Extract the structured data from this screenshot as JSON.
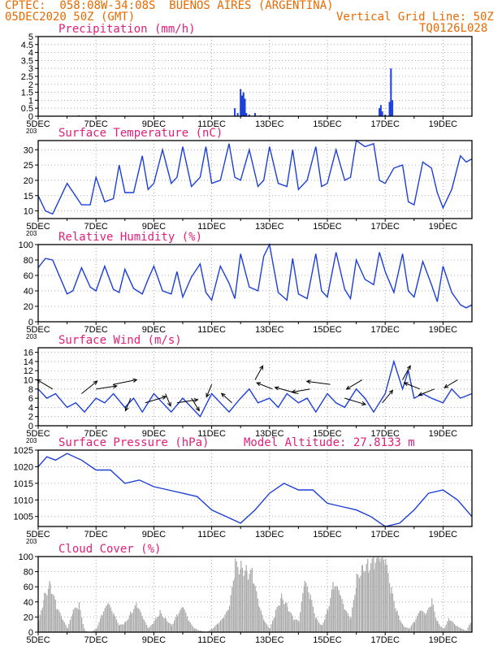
{
  "header": {
    "line1": "CPTEC:  058:08W-34:08S  BUENOS AIRES (ARGENTINA)",
    "line2": "05DEC2020 50Z (GMT)",
    "grid_note": "Vertical Grid Line: 50Z",
    "code": "TQ0126L028"
  },
  "colors": {
    "header": "#e86a00",
    "title": "#e0207a",
    "series": "#1c3fd8",
    "cloud": "#a8a8a8"
  },
  "x_axis": {
    "labels": [
      "5DEC",
      "7DEC",
      "9DEC",
      "11DEC",
      "13DEC",
      "15DEC",
      "17DEC",
      "19DEC"
    ],
    "stub": "203"
  },
  "chart_data": [
    {
      "id": "precip",
      "type": "bar",
      "title": "Precipitation (mm/h)",
      "ylim": [
        0,
        5
      ],
      "yticks": [
        0,
        0.5,
        1,
        1.5,
        2,
        2.5,
        3,
        3.5,
        4,
        4.5,
        5
      ],
      "x": [
        6.4,
        7.1,
        10.6,
        11.8,
        11.9,
        12.0,
        12.05,
        12.1,
        12.15,
        12.2,
        12.3,
        12.5,
        12.7,
        16.8,
        16.85,
        16.9,
        17.0,
        17.15,
        17.2,
        17.25
      ],
      "values": [
        0.05,
        0.05,
        0.05,
        0.5,
        0.2,
        1.7,
        1.3,
        1.5,
        1.1,
        0.2,
        0.1,
        0.2,
        0.05,
        0.5,
        0.7,
        0.3,
        0.1,
        0.9,
        3.0,
        1.0
      ]
    },
    {
      "id": "temp",
      "type": "line",
      "title": "Surface Temperature (nC)",
      "ylim": [
        7.5,
        33
      ],
      "yticks": [
        10,
        15,
        20,
        25,
        30
      ],
      "x": [
        5.0,
        5.25,
        5.5,
        6.0,
        6.5,
        6.8,
        7.0,
        7.3,
        7.6,
        7.8,
        8.0,
        8.3,
        8.6,
        8.8,
        9.0,
        9.3,
        9.6,
        9.8,
        10.0,
        10.3,
        10.6,
        10.8,
        11.0,
        11.3,
        11.6,
        11.8,
        12.0,
        12.3,
        12.6,
        12.8,
        13.0,
        13.3,
        13.6,
        13.8,
        14.0,
        14.3,
        14.6,
        14.8,
        15.0,
        15.3,
        15.6,
        15.8,
        16.0,
        16.3,
        16.6,
        16.8,
        17.0,
        17.3,
        17.6,
        17.8,
        18.0,
        18.3,
        18.6,
        18.8,
        19.0,
        19.3,
        19.6,
        19.8,
        20.0
      ],
      "values": [
        15,
        10,
        9,
        19,
        12,
        12,
        21,
        13,
        14,
        25,
        16,
        16,
        28,
        17,
        19,
        30,
        19,
        21,
        31,
        18,
        21,
        31,
        19,
        20,
        32,
        21,
        20,
        30,
        18,
        20,
        31,
        19,
        18,
        30,
        17,
        20,
        31,
        18,
        19,
        30,
        20,
        21,
        33,
        31,
        32,
        20,
        19,
        24,
        25,
        13,
        12,
        26,
        24,
        16,
        11,
        17,
        28,
        26,
        27
      ]
    },
    {
      "id": "rh",
      "type": "line",
      "title": "Relative Humidity (%)",
      "ylim": [
        0,
        100
      ],
      "yticks": [
        0,
        20,
        40,
        60,
        80,
        100
      ],
      "x": [
        5.0,
        5.25,
        5.5,
        6.0,
        6.2,
        6.5,
        6.8,
        7.0,
        7.3,
        7.6,
        7.8,
        8.0,
        8.3,
        8.6,
        8.8,
        9.0,
        9.3,
        9.6,
        9.8,
        10.0,
        10.3,
        10.6,
        10.8,
        11.0,
        11.3,
        11.6,
        11.8,
        12.0,
        12.3,
        12.6,
        12.8,
        13.0,
        13.3,
        13.6,
        13.8,
        14.0,
        14.3,
        14.6,
        14.8,
        15.0,
        15.3,
        15.6,
        15.8,
        16.0,
        16.3,
        16.6,
        16.8,
        17.0,
        17.3,
        17.6,
        17.8,
        18.0,
        18.3,
        18.6,
        18.8,
        19.0,
        19.3,
        19.6,
        19.8,
        20.0
      ],
      "values": [
        70,
        82,
        80,
        36,
        40,
        70,
        45,
        40,
        72,
        42,
        38,
        68,
        43,
        36,
        55,
        72,
        40,
        36,
        65,
        32,
        58,
        75,
        38,
        28,
        72,
        50,
        30,
        88,
        45,
        40,
        85,
        100,
        38,
        28,
        82,
        36,
        30,
        88,
        40,
        32,
        90,
        42,
        30,
        80,
        55,
        48,
        90,
        65,
        38,
        88,
        40,
        32,
        78,
        48,
        26,
        72,
        38,
        22,
        18,
        22
      ]
    },
    {
      "id": "wind",
      "type": "line",
      "title": "Surface Wind (m/s)",
      "ylim": [
        0,
        17
      ],
      "yticks": [
        0,
        2,
        4,
        6,
        8,
        10,
        12,
        14,
        16
      ],
      "x": [
        5.0,
        5.3,
        5.6,
        6.0,
        6.3,
        6.6,
        7.0,
        7.3,
        7.6,
        8.0,
        8.3,
        8.6,
        9.0,
        9.3,
        9.6,
        10.0,
        10.3,
        10.6,
        11.0,
        11.3,
        11.6,
        12.0,
        12.3,
        12.6,
        13.0,
        13.3,
        13.6,
        14.0,
        14.3,
        14.6,
        15.0,
        15.3,
        15.6,
        16.0,
        16.3,
        16.6,
        17.0,
        17.3,
        17.6,
        17.8,
        18.0,
        18.3,
        18.6,
        19.0,
        19.3,
        19.6,
        20.0
      ],
      "values": [
        8,
        6,
        7,
        4,
        5,
        3,
        6,
        5,
        7,
        4,
        6,
        3,
        7,
        5,
        3,
        6,
        4,
        2,
        7,
        5,
        3,
        6,
        8,
        5,
        6,
        4,
        7,
        5,
        6,
        3,
        7,
        5,
        4,
        8,
        6,
        3,
        7,
        14,
        8,
        12,
        6,
        7,
        6,
        5,
        8,
        6,
        7
      ],
      "barbs": [
        {
          "x": 5.5,
          "dx": -6,
          "dy": -6
        },
        {
          "x": 6.5,
          "dx": 6,
          "dy": -8
        },
        {
          "x": 7.0,
          "dx": 8,
          "dy": -2
        },
        {
          "x": 7.6,
          "dx": 9,
          "dy": -3
        },
        {
          "x": 8.2,
          "dx": -2,
          "dy": 8
        },
        {
          "x": 8.7,
          "dx": 8,
          "dy": -4
        },
        {
          "x": 9.4,
          "dx": 2,
          "dy": 8
        },
        {
          "x": 9.8,
          "dx": 8,
          "dy": -2
        },
        {
          "x": 10.3,
          "dx": 3,
          "dy": 8
        },
        {
          "x": 11.0,
          "dx": -2,
          "dy": 8
        },
        {
          "x": 11.7,
          "dx": -4,
          "dy": -6
        },
        {
          "x": 12.5,
          "dx": 3,
          "dy": -9
        },
        {
          "x": 13.1,
          "dx": -6,
          "dy": -4
        },
        {
          "x": 14.0,
          "dx": -9,
          "dy": -4
        },
        {
          "x": 14.4,
          "dx": -7,
          "dy": 2
        },
        {
          "x": 15.1,
          "dx": -9,
          "dy": -2
        },
        {
          "x": 15.6,
          "dx": 8,
          "dy": 4
        },
        {
          "x": 16.2,
          "dx": -6,
          "dy": 6
        },
        {
          "x": 16.9,
          "dx": 4,
          "dy": -8
        },
        {
          "x": 17.6,
          "dx": 3,
          "dy": -9
        },
        {
          "x": 18.2,
          "dx": -6,
          "dy": -4
        },
        {
          "x": 18.7,
          "dx": -6,
          "dy": 4
        },
        {
          "x": 19.5,
          "dx": -5,
          "dy": 5
        }
      ]
    },
    {
      "id": "pres",
      "type": "line",
      "title": "Surface Pressure (hPa)",
      "subtitle": "Model Altitude: 27.8133 m",
      "ylim": [
        1002,
        1025
      ],
      "yticks": [
        1005,
        1010,
        1015,
        1020,
        1025
      ],
      "x": [
        5.0,
        5.3,
        5.6,
        6.0,
        6.5,
        7.0,
        7.5,
        8.0,
        8.5,
        9.0,
        9.5,
        10.0,
        10.5,
        11.0,
        11.5,
        12.0,
        12.5,
        13.0,
        13.5,
        14.0,
        14.5,
        15.0,
        15.5,
        16.0,
        16.5,
        17.0,
        17.5,
        18.0,
        18.5,
        19.0,
        19.5,
        20.0
      ],
      "values": [
        1020,
        1023,
        1022,
        1024,
        1022,
        1019,
        1019,
        1015,
        1016,
        1014,
        1013,
        1012,
        1011,
        1007,
        1005,
        1003,
        1007,
        1012,
        1015,
        1013,
        1013,
        1009,
        1008,
        1007,
        1005,
        1002,
        1003,
        1007,
        1012,
        1013,
        1010,
        1005
      ]
    },
    {
      "id": "cloud",
      "type": "bar",
      "title": "Cloud Cover (%)",
      "ylim": [
        0,
        100
      ],
      "yticks": [
        0,
        20,
        40,
        60,
        80,
        100
      ],
      "x": [
        5.0,
        5.2,
        5.4,
        5.6,
        5.8,
        6.0,
        6.2,
        6.4,
        6.6,
        6.8,
        7.0,
        7.2,
        7.4,
        7.6,
        7.8,
        8.0,
        8.2,
        8.4,
        8.6,
        8.8,
        9.0,
        9.2,
        9.4,
        9.6,
        9.8,
        10.0,
        10.2,
        10.4,
        10.6,
        10.8,
        11.0,
        11.2,
        11.4,
        11.6,
        11.8,
        12.0,
        12.2,
        12.4,
        12.6,
        12.8,
        13.0,
        13.2,
        13.4,
        13.6,
        13.8,
        14.0,
        14.2,
        14.4,
        14.6,
        14.8,
        15.0,
        15.2,
        15.4,
        15.6,
        15.8,
        16.0,
        16.2,
        16.4,
        16.6,
        16.8,
        17.0,
        17.2,
        17.4,
        17.6,
        17.8,
        18.0,
        18.2,
        18.4,
        18.6,
        18.8,
        19.0,
        19.2,
        19.4,
        19.6,
        19.8,
        20.0
      ],
      "values": [
        15,
        55,
        75,
        40,
        20,
        5,
        30,
        40,
        2,
        0,
        5,
        25,
        40,
        25,
        10,
        15,
        30,
        40,
        20,
        5,
        15,
        30,
        20,
        10,
        25,
        35,
        15,
        5,
        2,
        0,
        5,
        12,
        20,
        35,
        98,
        100,
        95,
        85,
        40,
        15,
        5,
        30,
        55,
        40,
        20,
        15,
        70,
        50,
        20,
        10,
        35,
        70,
        55,
        30,
        20,
        80,
        100,
        100,
        100,
        100,
        98,
        60,
        30,
        10,
        5,
        15,
        30,
        25,
        45,
        15,
        5,
        20,
        10,
        5,
        2,
        20
      ]
    }
  ]
}
